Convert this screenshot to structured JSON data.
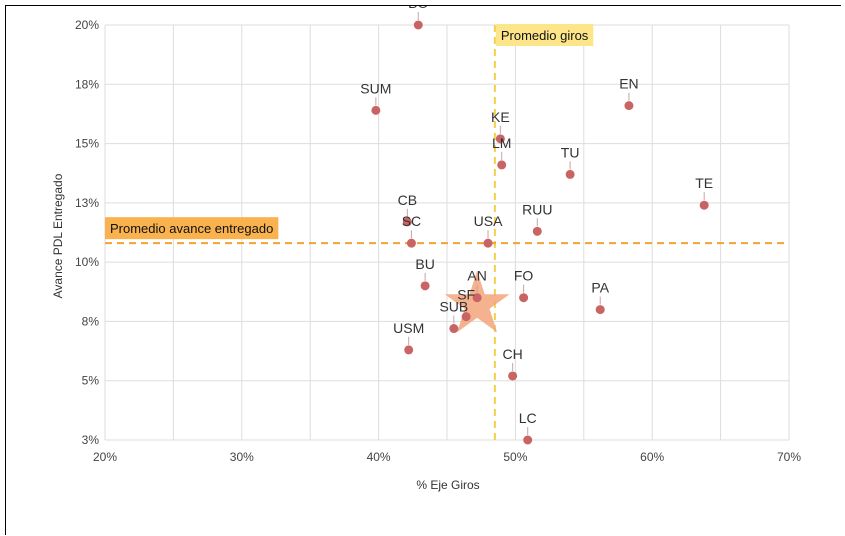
{
  "chart_data": {
    "type": "scatter",
    "xlabel": "% Eje Giros",
    "ylabel": "Avance PDL Entregado",
    "xlim": [
      0.2,
      0.7
    ],
    "ylim": [
      0.025,
      0.2
    ],
    "x_ticks": [
      "20%",
      "30%",
      "40%",
      "50%",
      "60%",
      "70%"
    ],
    "y_ticks": [
      "3%",
      "5%",
      "8%",
      "10%",
      "13%",
      "15%",
      "18%",
      "20%"
    ],
    "points": [
      {
        "label": "BO",
        "x": 0.429,
        "y": 0.2
      },
      {
        "label": "SUM",
        "x": 0.398,
        "y": 0.164
      },
      {
        "label": "EN",
        "x": 0.583,
        "y": 0.166
      },
      {
        "label": "KE",
        "x": 0.489,
        "y": 0.152
      },
      {
        "label": "LM",
        "x": 0.49,
        "y": 0.141
      },
      {
        "label": "TU",
        "x": 0.54,
        "y": 0.137
      },
      {
        "label": "TE",
        "x": 0.638,
        "y": 0.124
      },
      {
        "label": "CB",
        "x": 0.421,
        "y": 0.117
      },
      {
        "label": "SC",
        "x": 0.424,
        "y": 0.108
      },
      {
        "label": "USA",
        "x": 0.48,
        "y": 0.108
      },
      {
        "label": "RUU",
        "x": 0.516,
        "y": 0.113
      },
      {
        "label": "BU",
        "x": 0.434,
        "y": 0.09
      },
      {
        "label": "AN",
        "x": 0.472,
        "y": 0.085
      },
      {
        "label": "FO",
        "x": 0.506,
        "y": 0.085
      },
      {
        "label": "PA",
        "x": 0.562,
        "y": 0.08
      },
      {
        "label": "SF",
        "x": 0.464,
        "y": 0.077
      },
      {
        "label": "SUB",
        "x": 0.455,
        "y": 0.072
      },
      {
        "label": "USM",
        "x": 0.422,
        "y": 0.063
      },
      {
        "label": "CH",
        "x": 0.498,
        "y": 0.052
      },
      {
        "label": "LC",
        "x": 0.509,
        "y": 0.025
      }
    ],
    "highlight": {
      "x": 0.472,
      "y": 0.082
    },
    "reference_lines": {
      "vertical": {
        "label": "Promedio giros",
        "x": 0.485
      },
      "horizontal": {
        "label": "Promedio avance entregado",
        "y": 0.108
      }
    },
    "colors": {
      "point": "#c86464",
      "reference": "#f0a430",
      "vertical_reference": "#f2d04a",
      "vertical_label_bg": "#fde68a",
      "horizontal_label_bg": "#f9b24e",
      "star": "#f3a47a",
      "grid": "#dddddd"
    },
    "grid": true
  }
}
